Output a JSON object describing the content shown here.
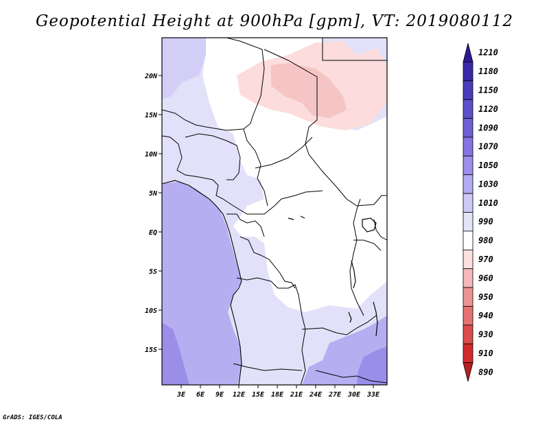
{
  "title": "Geopotential Height at 900hPa [gpm], VT: 2019080112",
  "footer": "GrADS: IGES/COLA",
  "map": {
    "lat_labels": [
      "20N",
      "15N",
      "10N",
      "5N",
      "EQ",
      "5S",
      "10S",
      "15S"
    ],
    "lon_labels": [
      "3E",
      "6E",
      "9E",
      "12E",
      "15E",
      "18E",
      "21E",
      "24E",
      "27E",
      "30E",
      "33E"
    ]
  },
  "colorbar": {
    "labels": [
      "1210",
      "1180",
      "1150",
      "1120",
      "1090",
      "1070",
      "1050",
      "1030",
      "1010",
      "990",
      "980",
      "970",
      "960",
      "950",
      "940",
      "930",
      "910",
      "890"
    ],
    "colors": [
      "#2c1a95",
      "#3a2aa8",
      "#4b3cb9",
      "#5d50c8",
      "#7060d6",
      "#8575e1",
      "#9b8fea",
      "#b4acf0",
      "#cdc9f5",
      "#e4e4f9",
      "#ffffff",
      "#fce0e0",
      "#f5b8b8",
      "#ec9393",
      "#e57272",
      "#dc4c4c",
      "#d02c2c",
      "#b51f1f"
    ]
  }
}
